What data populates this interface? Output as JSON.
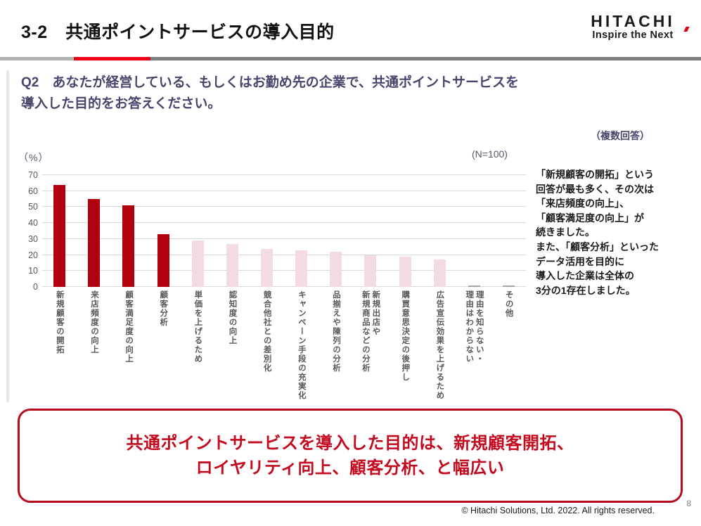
{
  "header": {
    "title": "3-2　共通ポイントサービスの導入目的",
    "logo": {
      "brand": "HITACHI",
      "tagline": "Inspire the Next"
    }
  },
  "divider_colors": {
    "light": "#b3b3b3",
    "red": "#f00014",
    "dark": "#7f7f7f"
  },
  "question": {
    "text": "Q2　あなたが経営している、もしくはお勤め先の企業で、共通ポイントサービスを\n導入した目的をお答えください。"
  },
  "chart_meta": {
    "multi_answer": "（複数回答）",
    "unit_label": "（%）",
    "n_label": "(N=100)"
  },
  "chart_data": {
    "type": "bar",
    "title": "",
    "xlabel": "",
    "ylabel": "%",
    "ylim": [
      0,
      70
    ],
    "ytick_step": 10,
    "grid": true,
    "legend": "none",
    "categories": [
      "新規顧客の開拓",
      "来店頻度の向上",
      "顧客満足度の向上",
      "顧客分析",
      "単価を上げるため",
      "認知度の向上",
      "競合他社との差別化",
      "キャンペーン手段の充実化",
      "品揃えや陳列の分析",
      "新規出店や\n新規商品などの分析",
      "購買意思決定の後押し",
      "広告宣伝効果を上げるため",
      "理由を知らない・\n理由はわからない",
      "その他"
    ],
    "values": [
      64,
      55,
      51,
      33,
      29,
      27,
      24,
      23,
      22,
      20,
      19,
      17,
      1,
      1
    ],
    "colors": [
      "#b2000f",
      "#b2000f",
      "#b2000f",
      "#b2000f",
      "#f2dce1",
      "#f2dce1",
      "#f2dce1",
      "#f2dce1",
      "#f2dce1",
      "#f2dce1",
      "#f2dce1",
      "#f2dce1",
      "#a6a6a6",
      "#a6a6a6"
    ]
  },
  "annotation": {
    "text": "「新規顧客の開拓」という\n回答が最も多く、その次は\n「来店頻度の向上」、\n「顧客満足度の向上」が\n続きました。\nまた、「顧客分析」といった\nデータ活用を目的に\n導入した企業は全体の\n3分の1存在しました。"
  },
  "conclusion": {
    "text": "共通ポイントサービスを導入した目的は、新規顧客開拓、\nロイヤリティ向上、顧客分析、と幅広い"
  },
  "footer": {
    "copyright": "© Hitachi Solutions, Ltd. 2022. All rights reserved.",
    "page": "8"
  }
}
